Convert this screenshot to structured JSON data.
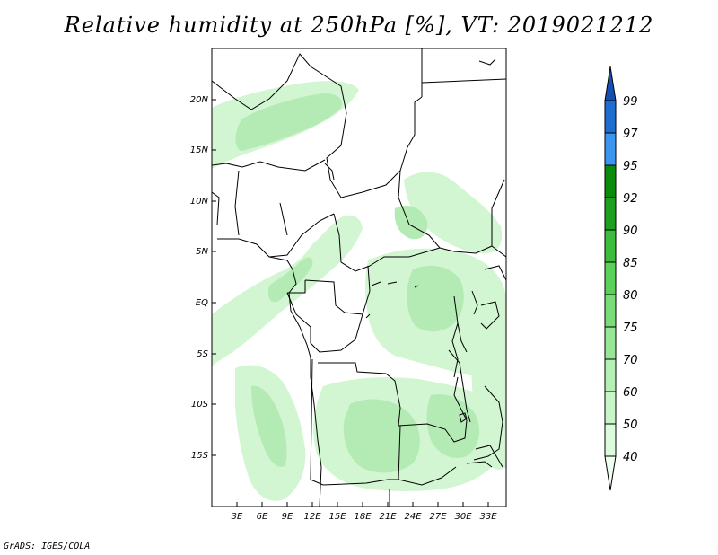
{
  "title": "Relative humidity at 250hPa [%], VT: 2019021212",
  "credit": "GrADS: IGES/COLA",
  "map": {
    "lon_range": [
      -1,
      35
    ],
    "lat_range": [
      -20,
      25
    ],
    "lon_ticks": [
      "3E",
      "6E",
      "9E",
      "12E",
      "15E",
      "18E",
      "21E",
      "24E",
      "27E",
      "30E",
      "33E"
    ],
    "lat_ticks": [
      "20N",
      "15N",
      "10N",
      "5N",
      "EQ",
      "5S",
      "10S",
      "15S"
    ]
  },
  "colorbar": {
    "levels": [
      "40",
      "50",
      "60",
      "70",
      "75",
      "80",
      "85",
      "90",
      "92",
      "95",
      "97",
      "99"
    ],
    "colors": [
      "#f0fff0",
      "#dcfadc",
      "#c8f5c8",
      "#b4f0b4",
      "#96e696",
      "#78dc78",
      "#5ad25a",
      "#3cbe3c",
      "#1ea01e",
      "#0a8c0a",
      "#3c96f0",
      "#1e6ed2",
      "#1450b4"
    ]
  },
  "fill_colors": {
    "light": "#d2f5d2",
    "medium": "#b4ebb4"
  }
}
